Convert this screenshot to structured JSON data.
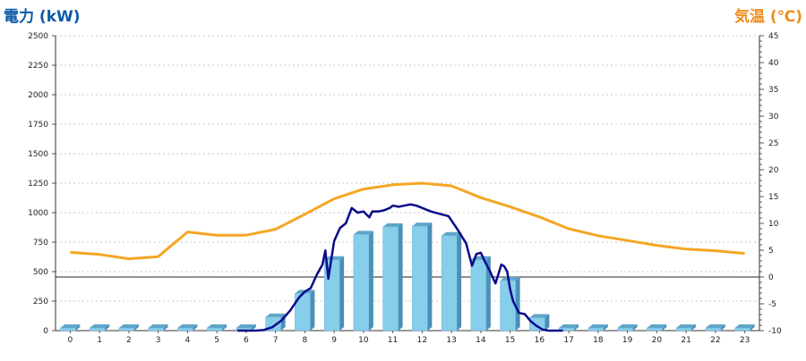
{
  "chart_data": {
    "type": "bar+line",
    "left_axis": {
      "title": "電力 (kW)",
      "range": [
        0,
        2500
      ],
      "ticks": [
        0,
        250,
        500,
        750,
        1000,
        1250,
        1500,
        1750,
        2000,
        2250,
        2500
      ],
      "color": "#0b5aa8"
    },
    "right_axis": {
      "title": "気温 (℃)",
      "range": [
        -10,
        45
      ],
      "ticks": [
        -10,
        -5,
        0,
        5,
        10,
        15,
        20,
        25,
        30,
        35,
        40,
        45
      ],
      "color": "#f08c1e"
    },
    "categories": [
      "0",
      "1",
      "2",
      "3",
      "4",
      "5",
      "6",
      "7",
      "8",
      "9",
      "10",
      "11",
      "12",
      "13",
      "14",
      "15",
      "16",
      "17",
      "18",
      "19",
      "20",
      "21",
      "22",
      "23"
    ],
    "grid": true,
    "series": [
      {
        "kind": "bar",
        "axis": "left",
        "color": "#87ceeb",
        "values": [
          0,
          0,
          0,
          0,
          0,
          0,
          0,
          115,
          315,
          600,
          815,
          880,
          885,
          805,
          600,
          425,
          110,
          0,
          0,
          0,
          0,
          0,
          0,
          0
        ]
      },
      {
        "kind": "line",
        "axis": "right",
        "color": "#f5a623",
        "values": [
          4.6,
          4.2,
          3.4,
          3.8,
          8.4,
          7.8,
          7.8,
          8.9,
          11.7,
          14.6,
          16.4,
          17.2,
          17.5,
          17.0,
          14.8,
          13.1,
          11.2,
          9.0,
          7.7,
          6.8,
          5.9,
          5.2,
          4.9,
          4.4
        ]
      },
      {
        "kind": "line",
        "axis": "left",
        "color": "#0a0a8c",
        "x": [
          5.7,
          6.0,
          6.3,
          6.6,
          6.9,
          7.2,
          7.5,
          7.8,
          8.0,
          8.2,
          8.4,
          8.6,
          8.7,
          8.8,
          9.0,
          9.2,
          9.4,
          9.6,
          9.8,
          10.0,
          10.2,
          10.3,
          10.5,
          10.7,
          10.9,
          11.0,
          11.2,
          11.4,
          11.6,
          11.8,
          12.0,
          12.3,
          12.6,
          12.9,
          13.2,
          13.5,
          13.7,
          13.85,
          14.0,
          14.15,
          14.3,
          14.5,
          14.7,
          14.8,
          14.9,
          15.0,
          15.1,
          15.3,
          15.5,
          15.7,
          15.9,
          16.1,
          16.3,
          16.6,
          16.8
        ],
        "values": [
          0,
          0,
          0,
          5,
          30,
          85,
          170,
          280,
          330,
          360,
          470,
          560,
          680,
          440,
          760,
          870,
          910,
          1040,
          1000,
          1010,
          960,
          1010,
          1010,
          1020,
          1040,
          1060,
          1050,
          1060,
          1070,
          1060,
          1040,
          1010,
          990,
          970,
          860,
          740,
          550,
          650,
          660,
          580,
          510,
          400,
          560,
          545,
          500,
          350,
          250,
          150,
          140,
          80,
          40,
          10,
          0,
          0,
          0
        ]
      }
    ]
  }
}
